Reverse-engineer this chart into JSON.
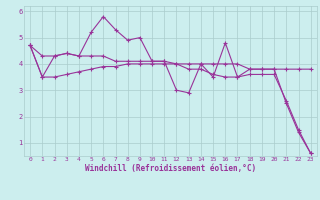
{
  "line1": [
    4.7,
    3.5,
    4.3,
    4.4,
    4.3,
    5.2,
    5.8,
    5.3,
    4.9,
    5.0,
    4.1,
    4.1,
    3.0,
    2.9,
    4.0,
    3.5,
    4.8,
    3.5,
    3.8,
    3.8,
    3.8,
    2.5,
    1.4,
    0.6
  ],
  "line2": [
    4.7,
    4.3,
    4.3,
    4.4,
    4.3,
    4.3,
    4.3,
    4.1,
    4.1,
    4.1,
    4.1,
    4.1,
    4.0,
    4.0,
    4.0,
    4.0,
    4.0,
    4.0,
    3.8,
    3.8,
    3.8,
    3.8,
    3.8,
    3.8
  ],
  "line3": [
    4.7,
    3.5,
    3.5,
    3.6,
    3.7,
    3.8,
    3.9,
    3.9,
    4.0,
    4.0,
    4.0,
    4.0,
    4.0,
    3.8,
    3.8,
    3.6,
    3.5,
    3.5,
    3.6,
    3.6,
    3.6,
    2.6,
    1.5,
    0.6
  ],
  "xlabel": "Windchill (Refroidissement éolien,°C)",
  "ylim": [
    0.5,
    6.2
  ],
  "xlim": [
    -0.5,
    23.5
  ],
  "yticks": [
    1,
    2,
    3,
    4,
    5,
    6
  ],
  "xticks": [
    0,
    1,
    2,
    3,
    4,
    5,
    6,
    7,
    8,
    9,
    10,
    11,
    12,
    13,
    14,
    15,
    16,
    17,
    18,
    19,
    20,
    21,
    22,
    23
  ],
  "line_color": "#993399",
  "bg_color": "#cceeee",
  "grid_color": "#aacccc",
  "marker": "+",
  "tick_label_size": 4.5,
  "ylabel_size": 5.0,
  "xlabel_size": 5.5
}
